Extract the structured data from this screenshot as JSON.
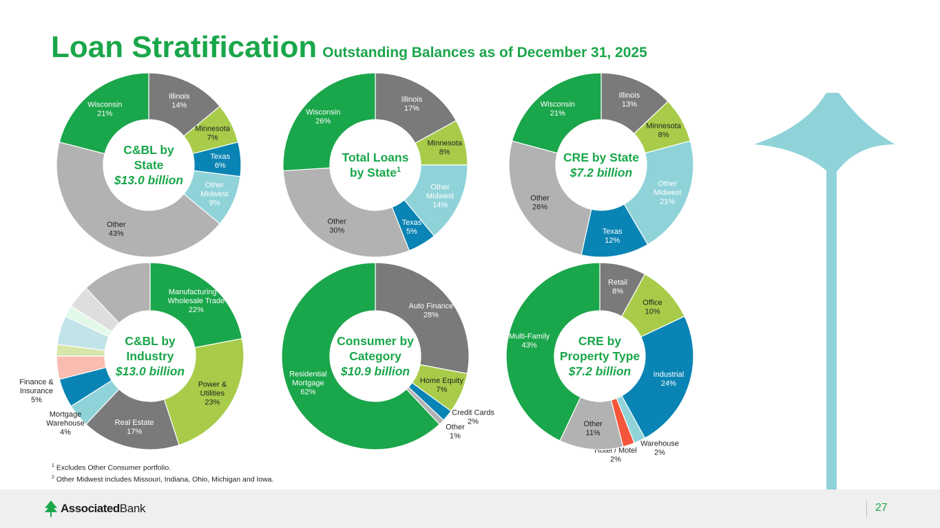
{
  "title": "Loan Stratification",
  "subtitle": "Outstanding Balances as of December 31, 2025",
  "footnotes": [
    {
      "mark": "1",
      "text": "Excludes Other Consumer portfolio."
    },
    {
      "mark": "2",
      "text": "Other Midwest includes Missouri, Indiana, Ohio, Michigan and Iowa."
    }
  ],
  "footer": {
    "brand_bold": "Associated",
    "brand_regular": "Bank",
    "page_number": "27"
  },
  "colors": {
    "green": "#1aa64a",
    "gray": "#7a7a7a",
    "lime": "#a8cc4a",
    "teal": "#0a84b4",
    "lightblue": "#8fd3d9",
    "lightgray": "#b2b2b2",
    "red": "#f5553a",
    "arrow": "#8fd3d9"
  },
  "chart_data": [
    {
      "type": "pie",
      "center_lines": [
        "C&BL by",
        "State",
        "$13.0 billion"
      ],
      "categories": [
        "Illinois",
        "Minnesota",
        "Texas",
        "Other Midwest",
        "Other",
        "Wisconsin"
      ],
      "values": [
        14,
        7,
        6,
        9,
        43,
        21
      ],
      "labels": [
        "Illinois|14%",
        "Minnesota|7%",
        "Texas|6%",
        "Other|Midwest|9%",
        "Other|43%",
        "Wisconsin|21%"
      ],
      "colors": [
        "#7a7a7a",
        "#a8cc4a",
        "#0a84b4",
        "#8fd3d9",
        "#b2b2b2",
        "#1aa64a"
      ]
    },
    {
      "type": "pie",
      "center_lines": [
        "Total Loans",
        "by State"
      ],
      "center_sup": "1",
      "categories": [
        "Illinois",
        "Minnesota",
        "Other Midwest",
        "Texas",
        "Other",
        "Wisconsin"
      ],
      "values": [
        17,
        8,
        14,
        5,
        30,
        26
      ],
      "labels": [
        "Illinois|17%",
        "Minnesota|8%",
        "Other|Midwest|14%",
        "Texas|5%",
        "Other|30%",
        "Wisconsin|26%"
      ],
      "colors": [
        "#7a7a7a",
        "#a8cc4a",
        "#8fd3d9",
        "#0a84b4",
        "#b2b2b2",
        "#1aa64a"
      ]
    },
    {
      "type": "pie",
      "center_lines": [
        "CRE by State",
        "$7.2 billion"
      ],
      "categories": [
        "Illinois",
        "Minnesota",
        "Other Midwest",
        "Texas",
        "Other",
        "Wisconsin"
      ],
      "values": [
        13,
        8,
        21,
        12,
        26,
        21
      ],
      "labels": [
        "Illinois|13%",
        "Minnesota|8%",
        "Other|Midwest|21%",
        "Texas|12%",
        "Other|26%",
        "Wisconsin|21%"
      ],
      "colors": [
        "#7a7a7a",
        "#a8cc4a",
        "#8fd3d9",
        "#0a84b4",
        "#b2b2b2",
        "#1aa64a"
      ]
    },
    {
      "type": "pie",
      "center_lines": [
        "C&BL by",
        "Industry",
        "$13.0 billion"
      ],
      "categories": [
        "Manufacturing & Wholesale Trade",
        "Power & Utilities",
        "Real Estate",
        "Mortgage Warehouse",
        "Finance & Insurance",
        "",
        "",
        "",
        "",
        "",
        ""
      ],
      "values": [
        22,
        23,
        17,
        4,
        5,
        4,
        2,
        5,
        2,
        4,
        12
      ],
      "labels": [
        "Manufacturing &|Wholesale Trade|22%",
        "Power &|Utilities|23%",
        "Real Estate|17%",
        "Mortgage|Warehouse|4%",
        "Finance &|Insurance|5%",
        "",
        "",
        "",
        "",
        "",
        ""
      ],
      "colors": [
        "#1aa64a",
        "#a8cc4a",
        "#7a7a7a",
        "#8fd3d9",
        "#0a84b4",
        "#f8bcb0",
        "#d6e6a8",
        "#c2e4e8",
        "#e2f8e8",
        "#dedede",
        "#b2b2b2"
      ]
    },
    {
      "type": "pie",
      "center_lines": [
        "Consumer by",
        "Category",
        "$10.9 billion"
      ],
      "categories": [
        "Auto Finance",
        "Home Equity",
        "Credit Cards",
        "Other",
        "Residential Mortgage"
      ],
      "values": [
        28,
        7,
        2,
        1,
        62
      ],
      "labels": [
        "Auto Finance|28%",
        "Home Equity|7%",
        "Credit Cards|2%",
        "Other|1%",
        "Residential|Mortgage|62%"
      ],
      "colors": [
        "#7a7a7a",
        "#a8cc4a",
        "#0a84b4",
        "#b2b2b2",
        "#1aa64a"
      ]
    },
    {
      "type": "pie",
      "center_lines": [
        "CRE by",
        "Property Type",
        "$7.2 billion"
      ],
      "categories": [
        "Retail",
        "Office",
        "Industrial",
        "Warehouse",
        "Hotel / Motel",
        "Other",
        "Multi-Family"
      ],
      "values": [
        8,
        10,
        24,
        2,
        2,
        11,
        43
      ],
      "labels": [
        "Retail|8%",
        "Office|10%",
        "Industrial|24%",
        "Warehouse|2%",
        "Hotel / Motel|2%",
        "Other|11%",
        "Multi-Family|43%"
      ],
      "colors": [
        "#7a7a7a",
        "#a8cc4a",
        "#0a84b4",
        "#8fd3d9",
        "#f5553a",
        "#b2b2b2",
        "#1aa64a"
      ]
    }
  ]
}
